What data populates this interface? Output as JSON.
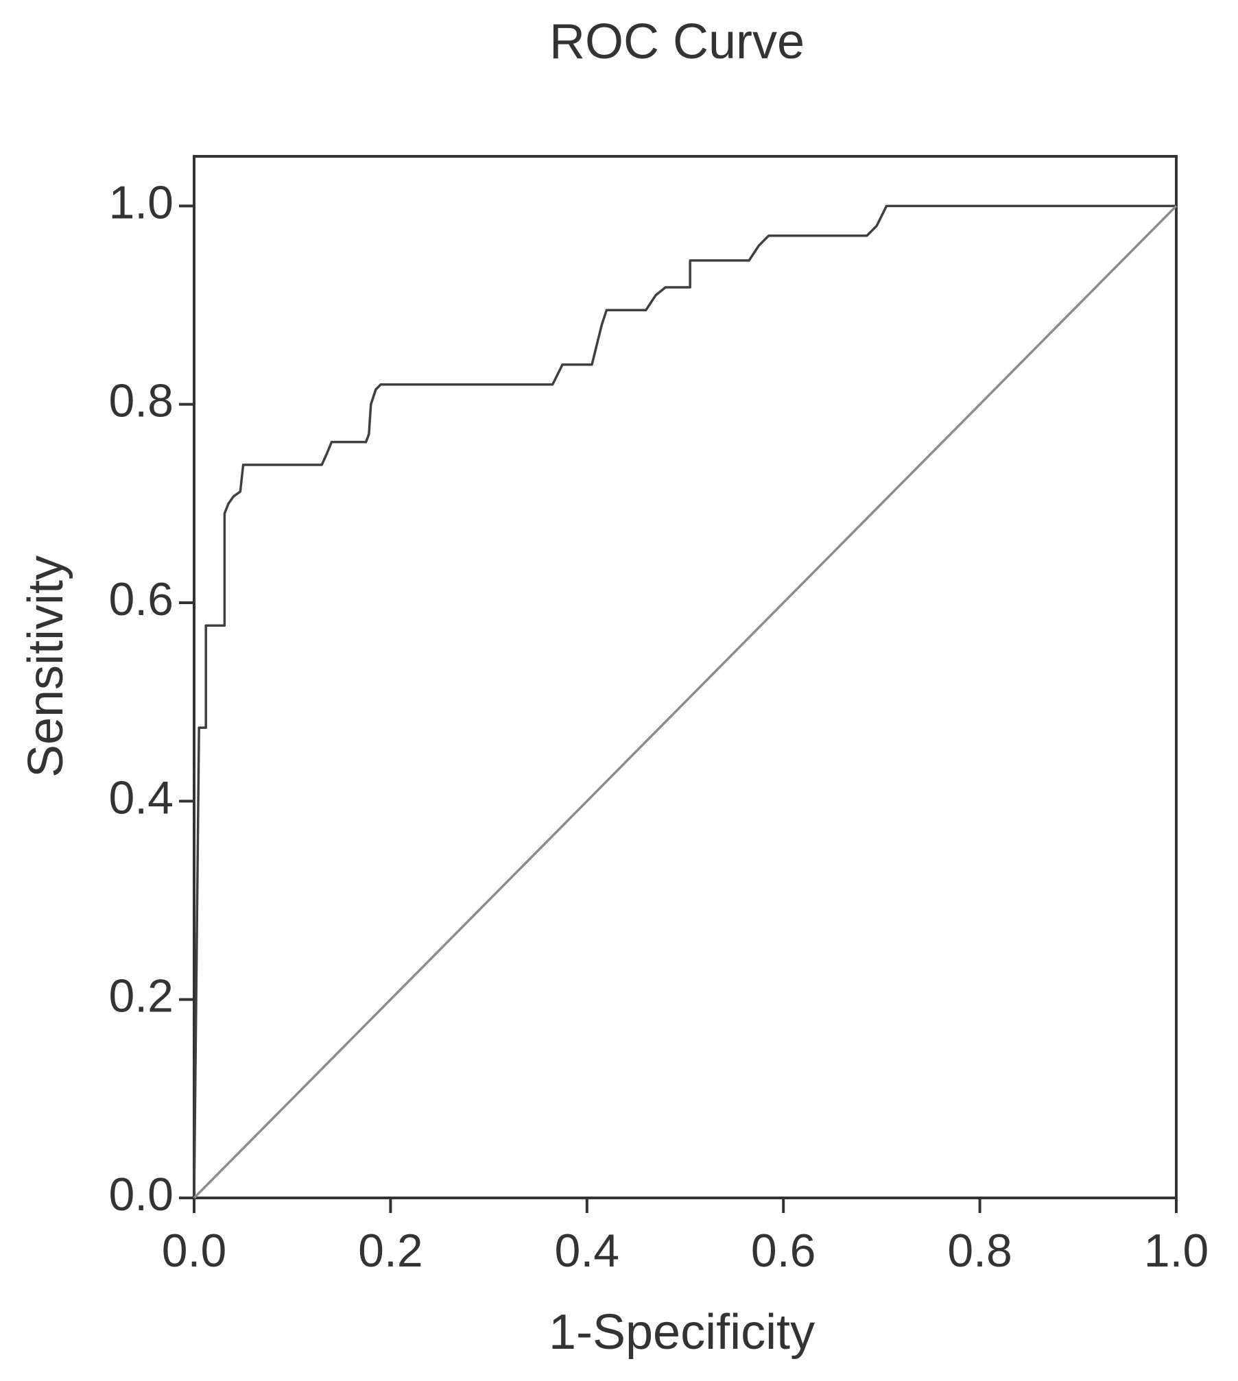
{
  "chart_data": {
    "type": "line",
    "title": "ROC Curve",
    "x_label": "1-Specificity",
    "y_label": "Sensitivity",
    "series": [
      {
        "color": "#3f3f3f",
        "x": [
          0,
          0.005,
          0.012,
          0.012,
          0.031,
          0.031,
          0.035,
          0.04,
          0.047,
          0.05,
          0.13,
          0.135,
          0.14,
          0.175,
          0.178,
          0.18,
          0.185,
          0.19,
          0.365,
          0.37,
          0.375,
          0.405,
          0.41,
          0.415,
          0.42,
          0.46,
          0.47,
          0.48,
          0.505,
          0.505,
          0.565,
          0.575,
          0.585,
          0.685,
          0.695,
          0.7,
          0.705,
          1.0
        ],
        "values": [
          0,
          0.474,
          0.474,
          0.577,
          0.577,
          0.69,
          0.7,
          0.707,
          0.712,
          0.739,
          0.739,
          0.75,
          0.762,
          0.762,
          0.77,
          0.8,
          0.815,
          0.82,
          0.82,
          0.83,
          0.84,
          0.84,
          0.86,
          0.88,
          0.895,
          0.895,
          0.91,
          0.918,
          0.918,
          0.945,
          0.945,
          0.96,
          0.97,
          0.97,
          0.98,
          0.99,
          1.0,
          1.0
        ]
      },
      {
        "color": "#8c8c8c",
        "x": [
          0,
          1
        ],
        "values": [
          0,
          1
        ]
      }
    ],
    "xlim": [
      0,
      1
    ],
    "ylim": [
      0,
      1.05
    ],
    "xticks": [
      {
        "value": 0,
        "label": "0.0"
      },
      {
        "value": 0.2,
        "label": "0.2"
      },
      {
        "value": 0.4,
        "label": "0.4"
      },
      {
        "value": 0.6,
        "label": "0.6"
      },
      {
        "value": 0.8,
        "label": "0.8"
      },
      {
        "value": 1,
        "label": "1.0"
      }
    ],
    "yticks": [
      {
        "value": 0,
        "label": "0.0"
      },
      {
        "value": 0.2,
        "label": "0.2"
      },
      {
        "value": 0.4,
        "label": "0.4"
      },
      {
        "value": 0.6,
        "label": "0.6"
      },
      {
        "value": 0.8,
        "label": "0.8"
      },
      {
        "value": 1,
        "label": "1.0"
      }
    ],
    "grid": false
  }
}
